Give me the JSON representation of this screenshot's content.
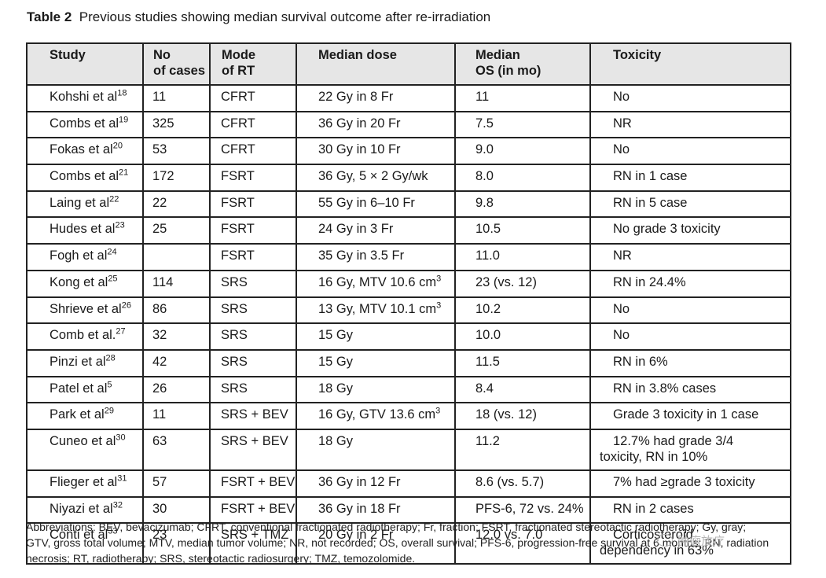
{
  "title": {
    "label": "Table 2",
    "text": "Previous studies showing median survival outcome after re-irradiation"
  },
  "headers": {
    "study": "Study",
    "cases": [
      "No",
      "of cases"
    ],
    "mode": [
      "Mode",
      "of RT"
    ],
    "dose": "Median dose",
    "os": [
      "Median",
      "OS (in mo)"
    ],
    "toxicity": "Toxicity"
  },
  "rows": [
    {
      "study": "Kohshi et al",
      "ref": "18",
      "cases": "11",
      "mode": "CFRT",
      "dose": "22 Gy in 8 Fr",
      "os": "11",
      "tox": "No"
    },
    {
      "study": "Combs et al",
      "ref": "19",
      "cases": "325",
      "mode": "CFRT",
      "dose": "36 Gy in 20 Fr",
      "os": "7.5",
      "tox": "NR"
    },
    {
      "study": "Fokas et al",
      "ref": "20",
      "cases": "53",
      "mode": "CFRT",
      "dose": "30 Gy in 10 Fr",
      "os": "9.0",
      "tox": "No"
    },
    {
      "study": "Combs et al",
      "ref": "21",
      "cases": "172",
      "mode": "FSRT",
      "dose": "36 Gy, 5 × 2 Gy/wk",
      "os": "8.0",
      "tox": "RN in 1 case"
    },
    {
      "study": "Laing et al",
      "ref": "22",
      "cases": "22",
      "mode": "FSRT",
      "dose": "55 Gy in 6–10 Fr",
      "os": "9.8",
      "tox": "RN in 5 case"
    },
    {
      "study": "Hudes et al",
      "ref": "23",
      "cases": "25",
      "mode": "FSRT",
      "dose": "24 Gy in 3 Fr",
      "os": "10.5",
      "tox": "No grade 3 toxicity"
    },
    {
      "study": "Fogh et al",
      "ref": "24",
      "cases": "",
      "mode": "FSRT",
      "dose": "35 Gy in 3.5 Fr",
      "os": "11.0",
      "tox": "NR"
    },
    {
      "study": "Kong et al",
      "ref": "25",
      "cases": "114",
      "mode": "SRS",
      "dose": "16 Gy, MTV 10.6 cm",
      "dose_sup": "3",
      "os": "23 (vs. 12)",
      "tox": "RN in 24.4%"
    },
    {
      "study": "Shrieve et al",
      "ref": "26",
      "cases": "86",
      "mode": "SRS",
      "dose": "13 Gy, MTV 10.1 cm",
      "dose_sup": "3",
      "os": "10.2",
      "tox": "No"
    },
    {
      "study": "Comb et al.",
      "ref": "27",
      "cases": "32",
      "mode": "SRS",
      "dose": "15 Gy",
      "os": "10.0",
      "tox": "No"
    },
    {
      "study": "Pinzi et al",
      "ref": "28",
      "cases": "42",
      "mode": "SRS",
      "dose": "15 Gy",
      "os": "11.5",
      "tox": "RN in 6%"
    },
    {
      "study": "Patel et al",
      "ref": "5",
      "cases": "26",
      "mode": "SRS",
      "dose": "18 Gy",
      "os": "8.4",
      "tox": "RN in 3.8% cases"
    },
    {
      "study": "Park et al",
      "ref": "29",
      "cases": "11",
      "mode": "SRS + BEV",
      "dose": "16 Gy, GTV 13.6 cm",
      "dose_sup": "3",
      "os": "18 (vs. 12)",
      "tox": "Grade 3 toxicity in 1 case"
    },
    {
      "study": "Cuneo et al",
      "ref": "30",
      "cases": "63",
      "mode": "SRS + BEV",
      "dose": "18 Gy",
      "os": "11.2",
      "tox": "12.7% had grade 3/4",
      "tox2": "toxicity, RN in 10%",
      "tall": true
    },
    {
      "study": "Flieger et al",
      "ref": "31",
      "cases": "57",
      "mode": "FSRT + BEV",
      "dose": "36 Gy in 12 Fr",
      "os": "8.6 (vs. 5.7)",
      "tox": "7% had ≥grade 3 toxicity"
    },
    {
      "study": "Niyazi et al",
      "ref": "32",
      "cases": "30",
      "mode": "FSRT + BEV",
      "dose": "36 Gy in 18 Fr",
      "os": "PFS-6, 72 vs. 24%",
      "tox": "RN in 2 cases"
    },
    {
      "study": "Conti et al",
      "ref": "33",
      "cases": "23",
      "mode": "SRS + TMZ",
      "dose": "20 Gy in 2 Fr",
      "os": "12.0 vs. 7.0",
      "tox": "Corticosteroid",
      "tox2": "dependency in 63%",
      "tall": true
    }
  ],
  "abbreviations": [
    "Abbreviations: BEV, bevacizumab; CFRT, conventional fractionated radiotherapy; Fr, fraction; FSRT, fractionated stereotactic radiotherapy; Gy, gray;",
    "GTV, gross total volume; MTV, median tumor volume; NR, not recorded; OS, overall survival; PFS-6, progression-free survival at 6 months; RN, radiation",
    "necrosis; RT, radiotherapy; SRS, stereotactic radiosurgery; TMZ, temozolomide."
  ],
  "watermark": "肿瘤放疗"
}
